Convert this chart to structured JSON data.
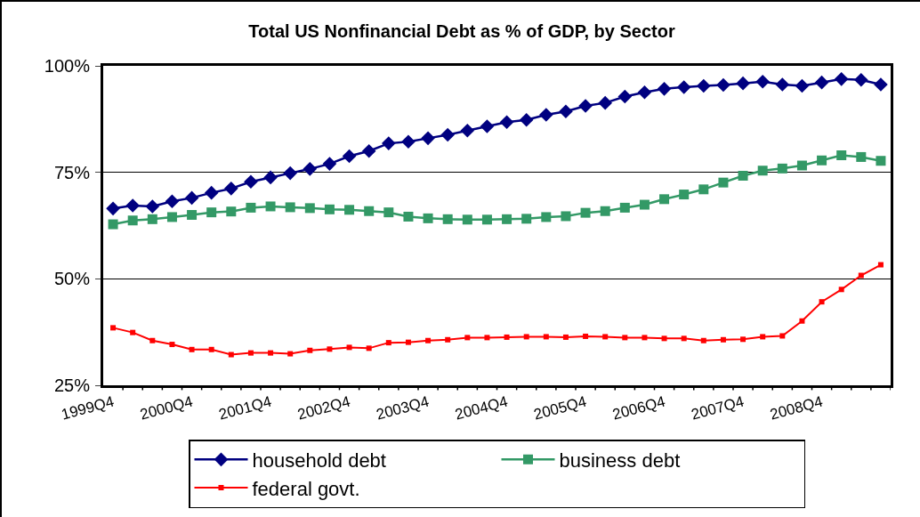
{
  "chart_data": {
    "type": "line",
    "title": "Total US Nonfinancial Debt as % of GDP, by Sector",
    "categories": [
      "1999Q4",
      null,
      null,
      null,
      "2000Q4",
      null,
      null,
      null,
      "2001Q4",
      null,
      null,
      null,
      "2002Q4",
      null,
      null,
      null,
      "2003Q4",
      null,
      null,
      null,
      "2004Q4",
      null,
      null,
      null,
      "2005Q4",
      null,
      null,
      null,
      "2006Q4",
      null,
      null,
      null,
      "2007Q4",
      null,
      null,
      null,
      "2008Q4",
      null,
      null,
      null
    ],
    "series": [
      {
        "name": "household debt",
        "color": "#000080",
        "marker": "diamond",
        "values": [
          66.5,
          67.2,
          67.0,
          68.2,
          69.0,
          70.2,
          71.2,
          72.8,
          73.8,
          74.8,
          75.8,
          77.0,
          78.8,
          80.0,
          81.8,
          82.2,
          83.0,
          83.8,
          84.8,
          85.8,
          86.8,
          87.3,
          88.5,
          89.3,
          90.6,
          91.3,
          92.8,
          93.8,
          94.6,
          95.0,
          95.3,
          95.5,
          95.9,
          96.3,
          95.6,
          95.3,
          96.1,
          96.9,
          96.7,
          95.6
        ]
      },
      {
        "name": "business debt",
        "color": "#339966",
        "marker": "square",
        "values": [
          62.8,
          63.7,
          64.0,
          64.5,
          65.0,
          65.6,
          65.8,
          66.7,
          67.0,
          66.8,
          66.6,
          66.3,
          66.2,
          65.9,
          65.6,
          64.6,
          64.2,
          64.0,
          63.9,
          63.9,
          64.0,
          64.1,
          64.5,
          64.7,
          65.5,
          65.9,
          66.7,
          67.4,
          68.7,
          69.8,
          71.0,
          72.6,
          74.2,
          75.4,
          75.9,
          76.6,
          77.8,
          79.0,
          78.6,
          77.7
        ]
      },
      {
        "name": "federal govt.",
        "color": "#ff0000",
        "marker": "square",
        "values": [
          38.5,
          37.4,
          35.5,
          34.6,
          33.4,
          33.4,
          32.2,
          32.6,
          32.6,
          32.4,
          33.2,
          33.5,
          33.9,
          33.7,
          35.0,
          35.1,
          35.5,
          35.7,
          36.2,
          36.2,
          36.3,
          36.4,
          36.4,
          36.3,
          36.5,
          36.4,
          36.2,
          36.2,
          36.0,
          36.0,
          35.5,
          35.7,
          35.8,
          36.4,
          36.6,
          40.1,
          44.6,
          47.5,
          50.8,
          53.3
        ]
      }
    ],
    "ylim": [
      25,
      100
    ],
    "yticks": [
      {
        "value": 25,
        "label": "25%"
      },
      {
        "value": 50,
        "label": "50%"
      },
      {
        "value": 75,
        "label": "75%"
      },
      {
        "value": 100,
        "label": "100%"
      }
    ],
    "grid": "y",
    "legend": "bottom",
    "line_style": "solid"
  }
}
